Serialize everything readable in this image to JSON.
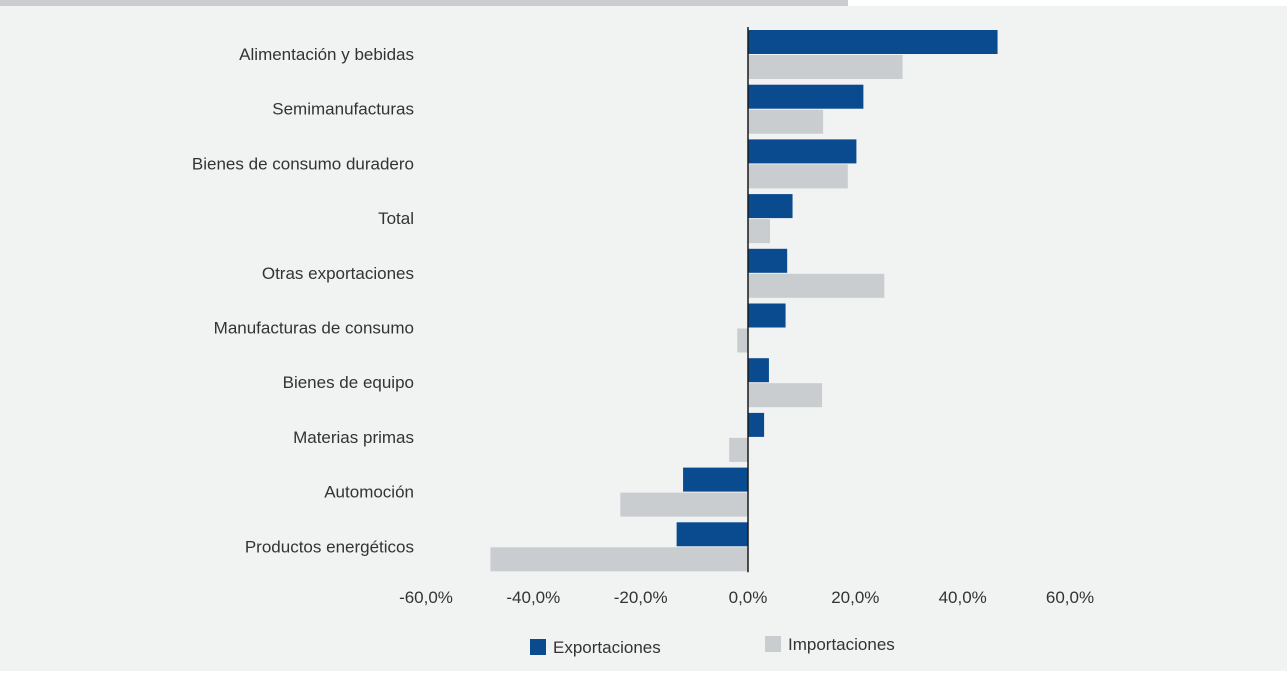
{
  "colors": {
    "background": "#f1f2f2",
    "top_band": "#c9cdd0",
    "exportaciones": "#0a4a8f",
    "importaciones": "#c9cdd0",
    "axis": "#1a1a1a",
    "text": "#333333"
  },
  "chart_data": {
    "type": "bar",
    "orientation": "horizontal",
    "categories": [
      "Alimentación y bebidas",
      "Semimanufacturas",
      "Bienes de consumo duradero",
      "Total",
      "Otras exportaciones",
      "Manufacturas de consumo",
      "Bienes de equipo",
      "Materias primas",
      "Automoción",
      "Productos energéticos"
    ],
    "series": [
      {
        "name": "Exportaciones",
        "color": "#0a4a8f",
        "values": [
          46.5,
          21.5,
          20.2,
          8.3,
          7.3,
          7.0,
          3.9,
          3.0,
          -12.1,
          -13.3
        ]
      },
      {
        "name": "Importaciones",
        "color": "#c9cdd0",
        "values": [
          28.8,
          14.0,
          18.6,
          4.1,
          25.4,
          -2.0,
          13.8,
          -3.5,
          -23.8,
          -48.0
        ]
      }
    ],
    "xlim": [
      -60,
      60
    ],
    "xticks": [
      -60,
      -40,
      -20,
      0,
      20,
      40,
      60
    ],
    "xtick_labels": [
      "-60,0%",
      "-40,0%",
      "-20,0%",
      "0,0%",
      "20,0%",
      "40,0%",
      "60,0%"
    ],
    "grid": false,
    "legend_position": "bottom-center"
  }
}
